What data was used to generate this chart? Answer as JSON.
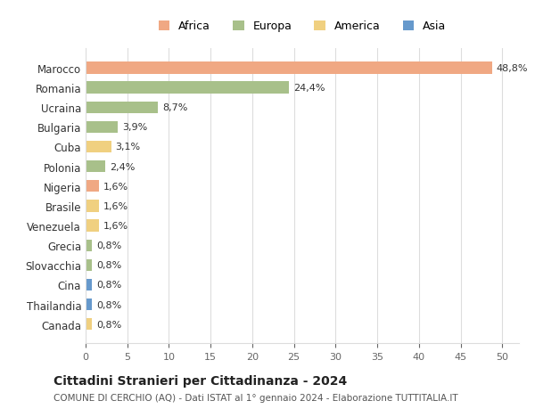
{
  "categories": [
    "Marocco",
    "Romania",
    "Ucraina",
    "Bulgaria",
    "Cuba",
    "Polonia",
    "Nigeria",
    "Brasile",
    "Venezuela",
    "Grecia",
    "Slovacchia",
    "Cina",
    "Thailandia",
    "Canada"
  ],
  "values": [
    48.8,
    24.4,
    8.7,
    3.9,
    3.1,
    2.4,
    1.6,
    1.6,
    1.6,
    0.8,
    0.8,
    0.8,
    0.8,
    0.8
  ],
  "labels": [
    "48,8%",
    "24,4%",
    "8,7%",
    "3,9%",
    "3,1%",
    "2,4%",
    "1,6%",
    "1,6%",
    "1,6%",
    "0,8%",
    "0,8%",
    "0,8%",
    "0,8%",
    "0,8%"
  ],
  "continents": [
    "Africa",
    "Europa",
    "Europa",
    "Europa",
    "America",
    "Europa",
    "Africa",
    "America",
    "America",
    "Europa",
    "Europa",
    "Asia",
    "Asia",
    "America"
  ],
  "continent_colors": {
    "Africa": "#F0A883",
    "Europa": "#A8C08A",
    "America": "#F0D080",
    "Asia": "#6699CC"
  },
  "legend_entries": [
    "Africa",
    "Europa",
    "America",
    "Asia"
  ],
  "legend_colors": [
    "#F0A883",
    "#A8C08A",
    "#F0D080",
    "#6699CC"
  ],
  "title": "Cittadini Stranieri per Cittadinanza - 2024",
  "subtitle": "COMUNE DI CERCHIO (AQ) - Dati ISTAT al 1° gennaio 2024 - Elaborazione TUTTITALIA.IT",
  "xlim": [
    0,
    52
  ],
  "xticks": [
    0,
    5,
    10,
    15,
    20,
    25,
    30,
    35,
    40,
    45,
    50
  ],
  "background_color": "#ffffff",
  "grid_color": "#dddddd",
  "bar_height": 0.6
}
